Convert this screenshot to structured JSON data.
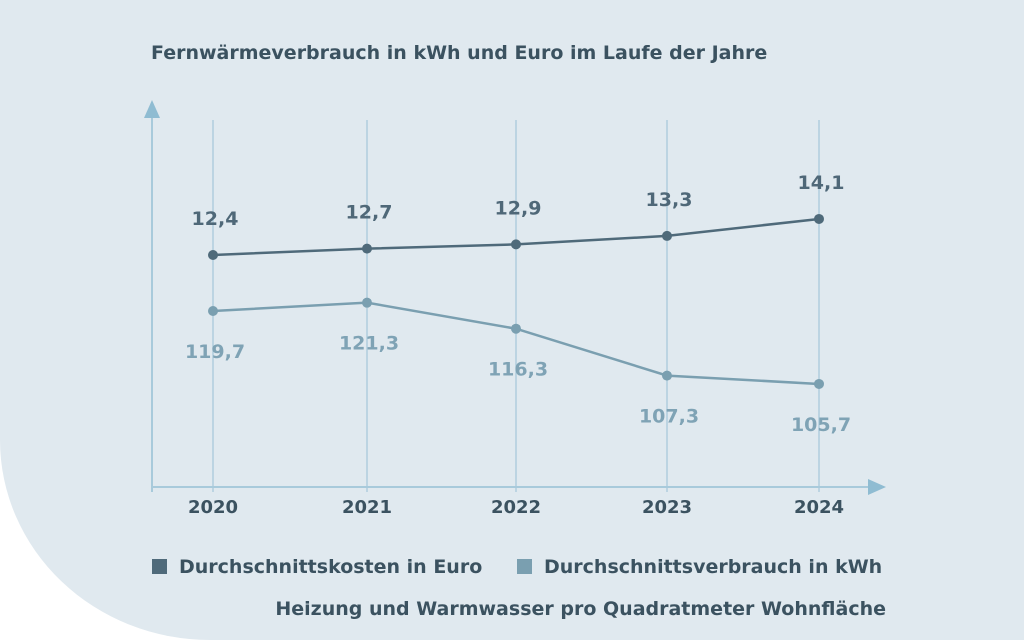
{
  "chart_data": {
    "type": "line",
    "title": "Fernwärmeverbrauch in kWh und Euro im Laufe der Jahre",
    "categories": [
      "2020",
      "2021",
      "2022",
      "2023",
      "2024"
    ],
    "series": [
      {
        "name": "Durchschnittskosten in Euro",
        "values": [
          12.4,
          12.7,
          12.9,
          13.3,
          14.1
        ],
        "labels": [
          "12,4",
          "12,7",
          "12,9",
          "13,3",
          "14,1"
        ],
        "color": "#4f6a7a"
      },
      {
        "name": "Durchschnittsverbrauch in kWh",
        "values": [
          119.7,
          121.3,
          116.3,
          107.3,
          105.7
        ],
        "labels": [
          "119,7",
          "121,3",
          "116,3",
          "107,3",
          "105,7"
        ],
        "color": "#7a9fb0"
      }
    ],
    "note": "Heizung und Warmwasser pro Quadratmeter Wohnfläche",
    "grid": "vertical",
    "legend": "bottom",
    "axis_color": "#a8cadb",
    "background": "#e0e9ef"
  }
}
